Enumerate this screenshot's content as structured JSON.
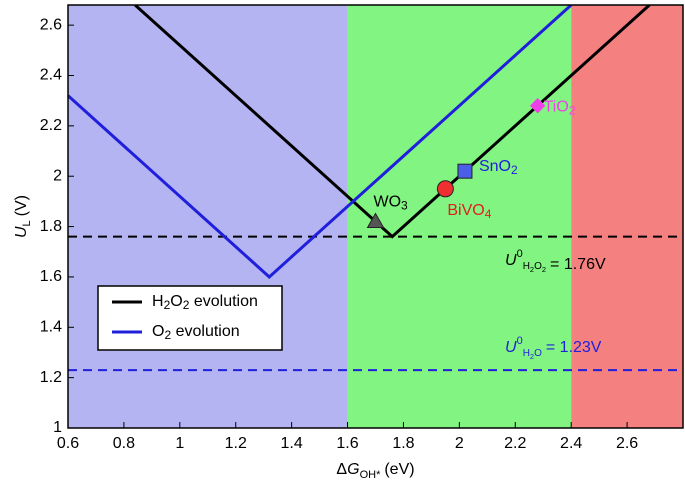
{
  "chart_data": {
    "type": "line",
    "xlabel": {
      "prefix": "Δ",
      "symbol": "G",
      "sub": "OH*",
      "text": "(eV)"
    },
    "ylabel": {
      "symbol": "U",
      "sub": "L",
      "text": "(V)"
    },
    "xlim": [
      0.6,
      2.8
    ],
    "ylim": [
      1,
      2.68
    ],
    "xticks": [
      0.6,
      0.8,
      1,
      1.2,
      1.4,
      1.6,
      1.8,
      2,
      2.2,
      2.4,
      2.6
    ],
    "yticks": [
      1,
      1.2,
      1.4,
      1.6,
      1.8,
      2,
      2.2,
      2.4,
      2.6
    ],
    "regions": [
      {
        "from": 0.6,
        "to": 1.6,
        "color": "#b4b4f2"
      },
      {
        "from": 1.6,
        "to": 2.4,
        "color": "#82f482"
      },
      {
        "from": 2.4,
        "to": 2.8,
        "color": "#f48080"
      }
    ],
    "series": [
      {
        "name": "H2O2 evolution",
        "color": "#000000",
        "x": [
          0.84,
          1.76,
          2.68
        ],
        "values": [
          2.68,
          1.76,
          2.68
        ]
      },
      {
        "name": "O2 evolution",
        "color": "#1f1fdc",
        "x": [
          0.6,
          1.32,
          2.4
        ],
        "values": [
          2.32,
          1.6,
          2.68
        ]
      }
    ],
    "hlines": [
      {
        "value": 1.76,
        "color": "#000000",
        "symbol": "U",
        "sup": "0",
        "sub": "H2O2",
        "text": "= 1.76V"
      },
      {
        "value": 1.23,
        "color": "#1f1fdc",
        "symbol": "U",
        "sup": "0",
        "sub": "H2O",
        "text": "= 1.23V"
      }
    ],
    "points": [
      {
        "label": "WO3",
        "x": 1.7,
        "y": 1.82,
        "marker": "triangle",
        "color": "#555555",
        "label_color": "#000000"
      },
      {
        "label": "BiVO4",
        "x": 1.95,
        "y": 1.95,
        "marker": "circle",
        "color": "#f03030",
        "label_color": "#e02020"
      },
      {
        "label": "SnO2",
        "x": 2.02,
        "y": 2.02,
        "marker": "square",
        "color": "#4a5ee8",
        "label_color": "#1f1fdc"
      },
      {
        "label": "TiO2",
        "x": 2.28,
        "y": 2.28,
        "marker": "diamond",
        "color": "#f040e8",
        "label_color": "#f040e8"
      }
    ]
  }
}
